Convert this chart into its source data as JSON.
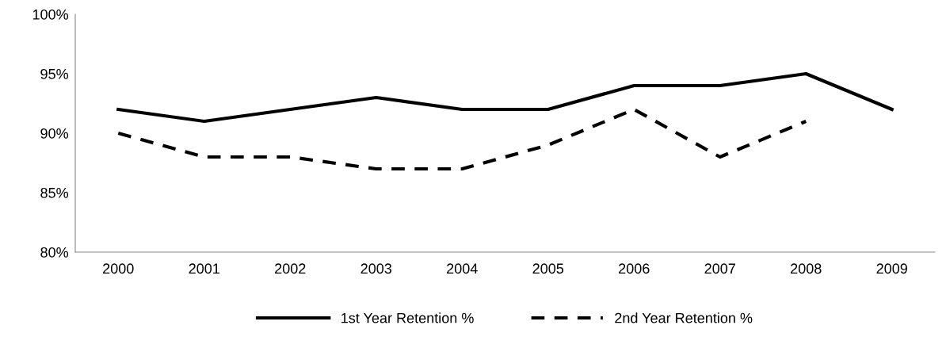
{
  "chart_data": {
    "type": "line",
    "categories": [
      "2000",
      "2001",
      "2002",
      "2003",
      "2004",
      "2005",
      "2006",
      "2007",
      "2008",
      "2009"
    ],
    "series": [
      {
        "name": "1st Year Retention %",
        "color": "#000000",
        "line_style": "solid",
        "values": [
          92,
          91,
          92,
          93,
          92,
          92,
          94,
          94,
          95,
          92
        ]
      },
      {
        "name": "2nd Year Retention %",
        "color": "#000000",
        "line_style": "dashed",
        "values": [
          90,
          88,
          88,
          87,
          87,
          89,
          92,
          88,
          91,
          null
        ]
      }
    ],
    "ylim": [
      80,
      100
    ],
    "yticks": [
      {
        "value": 80,
        "label": "80%"
      },
      {
        "value": 85,
        "label": "85%"
      },
      {
        "value": 90,
        "label": "90%"
      },
      {
        "value": 95,
        "label": "95%"
      },
      {
        "value": 100,
        "label": "100%"
      }
    ],
    "grid": false,
    "legend": "bottom",
    "marker": "none"
  }
}
